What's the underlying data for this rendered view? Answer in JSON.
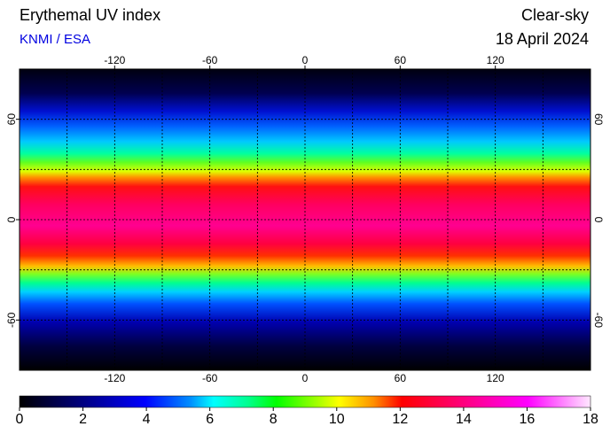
{
  "header": {
    "title": "Erythemal UV index",
    "source": "KNMI / ESA",
    "mode": "Clear-sky",
    "date": "18 April 2024"
  },
  "map": {
    "xlim": [
      -180,
      180
    ],
    "ylim": [
      -90,
      90
    ],
    "lon_ticks": [
      -120,
      -60,
      0,
      60,
      120
    ],
    "lat_ticks": [
      -60,
      0,
      60
    ],
    "grid_lons": [
      -150,
      -120,
      -90,
      -60,
      -30,
      0,
      30,
      60,
      90,
      120,
      150
    ],
    "grid_lats": [
      -60,
      -30,
      0,
      30,
      60
    ]
  },
  "colorbar": {
    "ticks": [
      0,
      2,
      4,
      6,
      8,
      10,
      12,
      14,
      16,
      18
    ]
  }
}
